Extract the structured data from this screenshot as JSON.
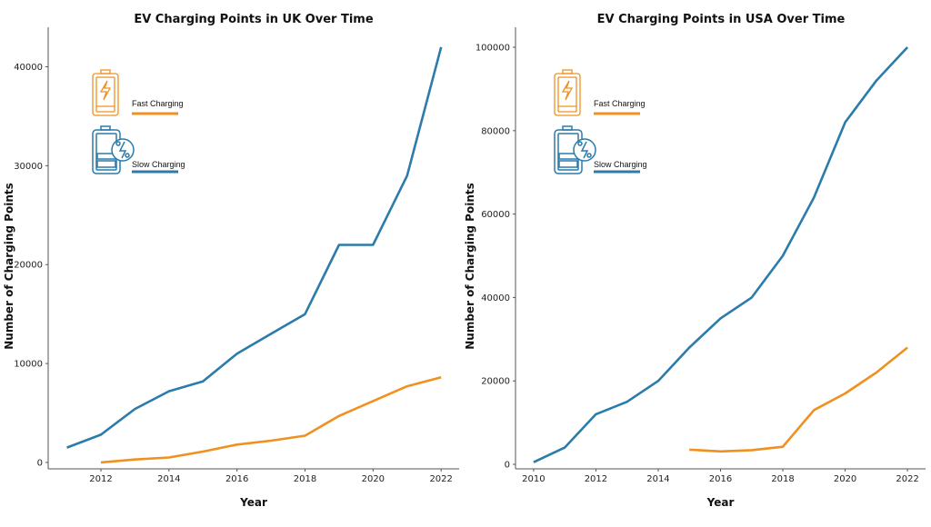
{
  "colors": {
    "fast": "#f0901f",
    "slow": "#2b7bab",
    "axis": "#555555"
  },
  "icons": {
    "fast": "battery-bolt-icon",
    "slow": "battery-percent-icon"
  },
  "chart_data": [
    {
      "type": "line",
      "title": "EV Charging Points in UK Over Time",
      "xlabel": "Year",
      "ylabel": "Number of Charging Points",
      "xlim": [
        2010.45,
        2022.53
      ],
      "ylim": [
        -650,
        44000
      ],
      "xticks": [
        2012,
        2014,
        2016,
        2018,
        2020,
        2022
      ],
      "yticks": [
        0,
        10000,
        20000,
        30000,
        40000
      ],
      "grid": false,
      "legend": "top-left",
      "series": [
        {
          "name": "Fast Charging",
          "x": [
            2012,
            2013,
            2014,
            2015,
            2016,
            2017,
            2018,
            2019,
            2020,
            2021,
            2022
          ],
          "values": [
            0,
            300,
            500,
            1100,
            1800,
            2200,
            2700,
            4700,
            6200,
            7700,
            8600
          ]
        },
        {
          "name": "Slow Charging",
          "x": [
            2011,
            2012,
            2013,
            2014,
            2015,
            2016,
            2017,
            2018,
            2019,
            2020,
            2021,
            2022
          ],
          "values": [
            1500,
            2800,
            5400,
            7200,
            8200,
            11000,
            13000,
            15000,
            22000,
            22000,
            29000,
            42000
          ]
        }
      ]
    },
    {
      "type": "line",
      "title": "EV Charging Points in USA Over Time",
      "xlabel": "Year",
      "ylabel": "Number of Charging Points",
      "xlim": [
        2009.42,
        2022.58
      ],
      "ylim": [
        -1090,
        104800
      ],
      "xticks": [
        2010,
        2012,
        2014,
        2016,
        2018,
        2020,
        2022
      ],
      "yticks": [
        0,
        20000,
        40000,
        60000,
        80000,
        100000
      ],
      "grid": false,
      "legend": "top-left",
      "series": [
        {
          "name": "Fast Charging",
          "x": [
            2015,
            2016,
            2017,
            2018,
            2019,
            2020,
            2021,
            2022
          ],
          "values": [
            3500,
            3100,
            3400,
            4200,
            13000,
            17000,
            22000,
            28000
          ]
        },
        {
          "name": "Slow Charging",
          "x": [
            2010,
            2011,
            2012,
            2013,
            2014,
            2015,
            2016,
            2017,
            2018,
            2019,
            2020,
            2021,
            2022
          ],
          "values": [
            500,
            4000,
            12000,
            15000,
            20000,
            28000,
            35000,
            40000,
            50000,
            64000,
            82000,
            92000,
            100000
          ]
        }
      ]
    }
  ]
}
